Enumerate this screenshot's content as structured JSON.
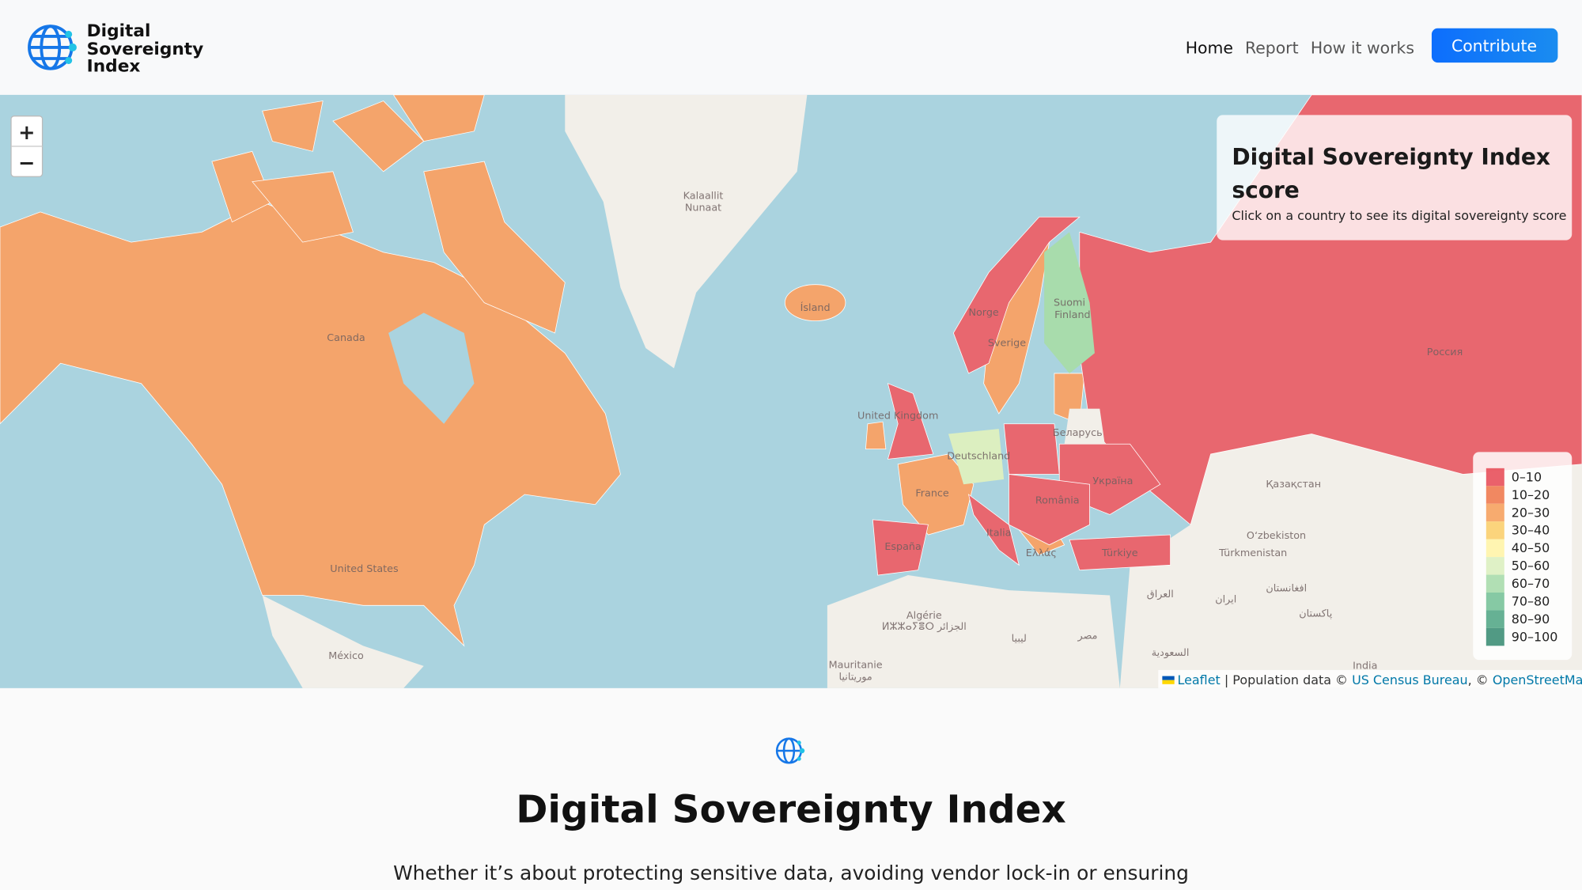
{
  "header": {
    "logo": [
      "Digital",
      "Sovereignty",
      "Index"
    ],
    "nav": [
      "Home",
      "Report",
      "How it works"
    ],
    "button": "Contribute"
  },
  "map": {
    "zoom": [
      "+",
      "−"
    ],
    "info": {
      "title": [
        "Digital Sovereignty Index",
        "score"
      ],
      "subtitle": "Click on a country to see its digital sovereignty score"
    },
    "legend": [
      {
        "label": "0–10",
        "color": "#e8505b"
      },
      {
        "label": "10–20",
        "color": "#f07b50"
      },
      {
        "label": "20–30",
        "color": "#f6a25f"
      },
      {
        "label": "30–40",
        "color": "#fbcf6e"
      },
      {
        "label": "40–50",
        "color": "#fff4a8"
      },
      {
        "label": "50–60",
        "color": "#dcefc0"
      },
      {
        "label": "60–70",
        "color": "#a8dcac"
      },
      {
        "label": "70–80",
        "color": "#79c39a"
      },
      {
        "label": "80–90",
        "color": "#55a888"
      },
      {
        "label": "90–100",
        "color": "#3e8f77"
      }
    ],
    "labels": [
      "Kalaallit",
      "Nunaat",
      "Ísland",
      "Norge",
      "Sverige",
      "Suomi",
      "Finland",
      "Canada",
      "United Kingdom",
      "Deutschland",
      "Беларусь",
      "France",
      "Україна",
      "România",
      "España",
      "Italia",
      "Ελλάς",
      "Türkiye",
      "Россия",
      "Қазақстан",
      "O‘zbekiston",
      "Türkmenistan",
      "United States",
      "México",
      "Algérie",
      "ⵍⵣⵣⴰⵢⴻⵔ الجزائر",
      "ليبيا",
      "مصر",
      "العراق",
      "ایران",
      "افغانستان",
      "پاکستان",
      "السعودية",
      "Mauritanie",
      "موريتانيا",
      "India"
    ],
    "attribution": [
      "Leaflet",
      "| Population data ©",
      "US Census Bureau",
      ",",
      "©",
      "OpenStreetMap"
    ]
  },
  "content": {
    "title": "Digital Sovereignty Index",
    "text": "Whether it’s about protecting sensitive data, avoiding vendor lock-in or ensuring"
  }
}
